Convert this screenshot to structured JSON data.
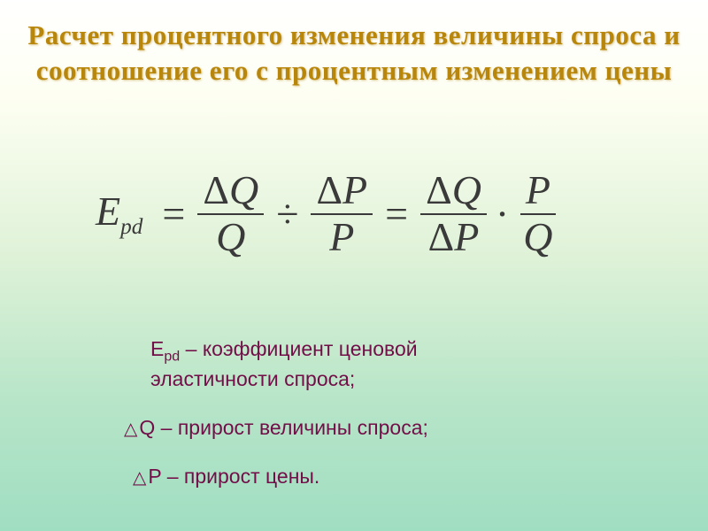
{
  "title": {
    "line1": "Расчет процентного изменения величины спроса и",
    "line2": "соотношение его с процентным изменением цены",
    "color": "#b8860b",
    "fontsize": 31
  },
  "formula": {
    "lhs_var": "E",
    "lhs_sub": "pd",
    "eq": "=",
    "frac1_num_delta": "Δ",
    "frac1_num_var": "Q",
    "frac1_den_var": "Q",
    "divide": "÷",
    "frac2_num_delta": "Δ",
    "frac2_num_var": "P",
    "frac2_den_var": "P",
    "eq2": "=",
    "frac3_num_delta": "Δ",
    "frac3_num_var": "Q",
    "frac3_den_delta": "Δ",
    "frac3_den_var": "P",
    "dot": "·",
    "frac4_num_var": "P",
    "frac4_den_var": "Q",
    "color": "#3a3a3a",
    "fontsize": 46
  },
  "legend": {
    "epd_var": "E",
    "epd_sub": "pd",
    "epd_text1": " – коэффициент ценовой",
    "epd_text2": "эластичности спроса;",
    "q_tri": "△",
    "q_text": "Q – прирост величины спроса;",
    "p_tri": "△",
    "p_text": "P – прирост цены.",
    "color": "#720e48",
    "fontsize": 23
  },
  "background": {
    "gradient_stops": [
      "#ffffff",
      "#fefff2",
      "#dff2d8",
      "#b8e5c8",
      "#a0dec2"
    ]
  }
}
